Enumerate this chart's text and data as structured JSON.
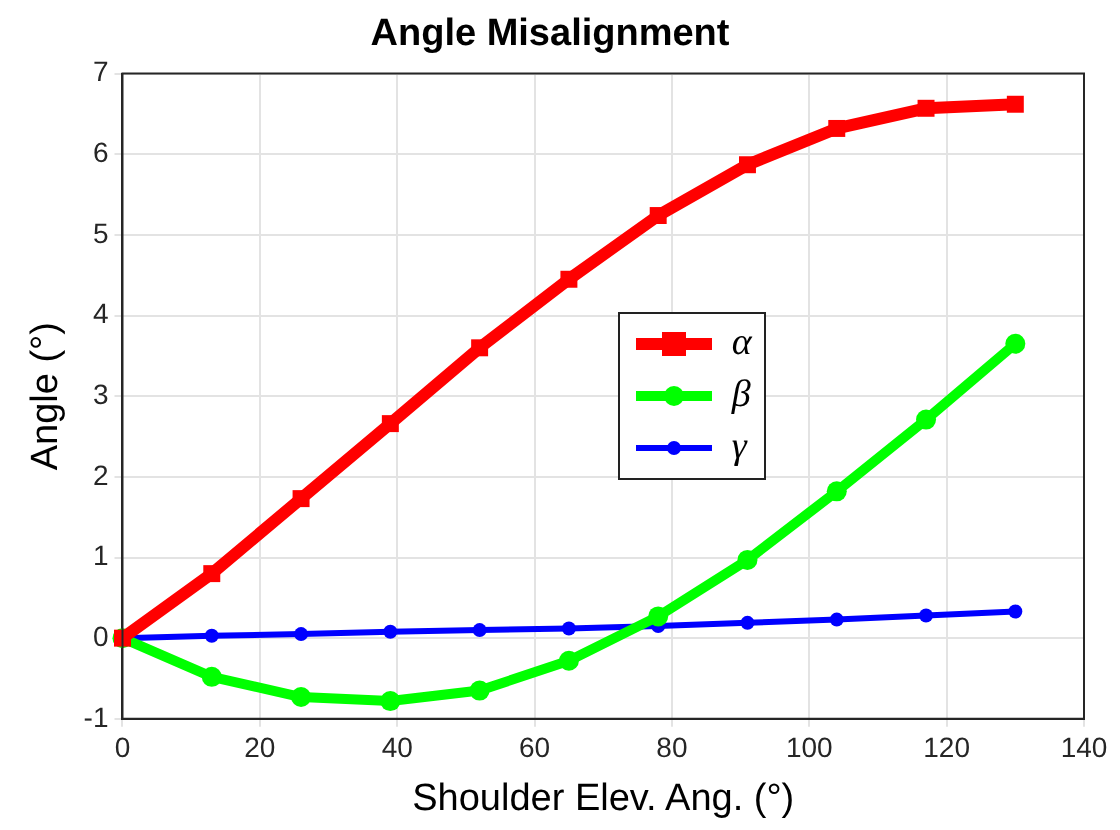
{
  "chart_data": {
    "type": "line",
    "title": "Angle Misalignment",
    "xlabel": "Shoulder Elev. Ang. (°)",
    "ylabel": "Angle (°)",
    "x": [
      0,
      13,
      26,
      39,
      52,
      65,
      78,
      91,
      104,
      117,
      130
    ],
    "series": [
      {
        "name": "α",
        "color": "#ff0000",
        "marker": "square",
        "values": [
          0,
          0.8,
          1.73,
          2.66,
          3.6,
          4.45,
          5.24,
          5.87,
          6.32,
          6.57,
          6.62
        ]
      },
      {
        "name": "β",
        "color": "#00ff00",
        "marker": "circle",
        "values": [
          0,
          -0.48,
          -0.73,
          -0.78,
          -0.65,
          -0.28,
          0.27,
          0.97,
          1.82,
          2.71,
          3.65
        ]
      },
      {
        "name": "γ",
        "color": "#0000ff",
        "marker": "circle",
        "values": [
          0,
          0.03,
          0.05,
          0.08,
          0.1,
          0.12,
          0.15,
          0.19,
          0.23,
          0.28,
          0.33
        ]
      }
    ],
    "xlim": [
      0,
      140
    ],
    "xticks": [
      0,
      20,
      40,
      60,
      80,
      100,
      120,
      140
    ],
    "ylim": [
      -1,
      7
    ],
    "yticks": [
      -1,
      0,
      1,
      2,
      3,
      4,
      5,
      6,
      7
    ],
    "grid": true,
    "legend": "right",
    "line_style": "solid"
  }
}
